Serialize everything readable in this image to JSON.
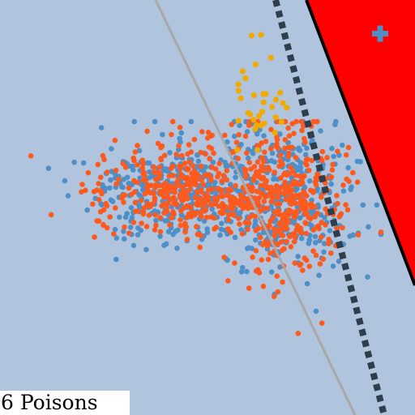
{
  "caption": "6 Poisons",
  "colors": {
    "background": "#b0c4de",
    "region_fill": "#ff0000",
    "region_edge": "#000000",
    "class_a": "#4f8fc8",
    "class_b": "#ff5a1e",
    "poison": "#f2a900",
    "reference_line": "#a8a8a8",
    "dashed_boundary": "#2f3e4c",
    "marker": "#4f8fc8"
  },
  "icons": {
    "marker": "plus-icon"
  },
  "points": {
    "class_a_count": 700,
    "class_b_count": 720,
    "poison_count": 34
  }
}
